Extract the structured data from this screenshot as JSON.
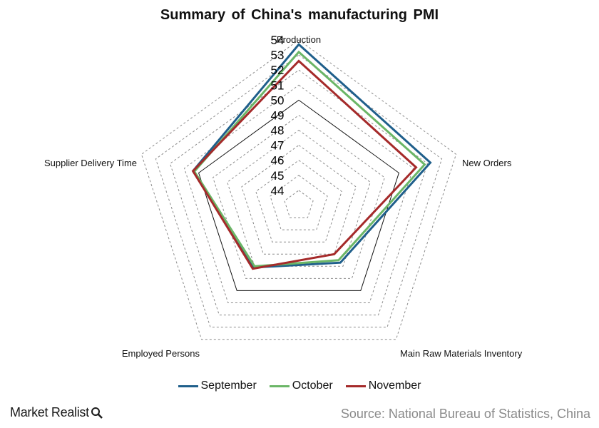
{
  "chart_data": {
    "type": "radar",
    "title": "Summary of China's manufacturing PMI",
    "axes": [
      "Production",
      "New Orders",
      "Main Raw Materials Inventory",
      "Employed Persons",
      "Supplier Delivery Time"
    ],
    "ticks": [
      44,
      45,
      46,
      47,
      48,
      49,
      50,
      51,
      52,
      53,
      54
    ],
    "range": [
      43,
      54
    ],
    "grid": "dashed",
    "reference_level": 50,
    "series": [
      {
        "name": "September",
        "color": "#1f5f8b",
        "values": [
          53.7,
          52.2,
          47.7,
          48.1,
          50.4
        ]
      },
      {
        "name": "October",
        "color": "#6bb667",
        "values": [
          53.2,
          51.8,
          47.5,
          48.0,
          50.3
        ]
      },
      {
        "name": "November",
        "color": "#a52a2a",
        "values": [
          52.6,
          51.2,
          47.0,
          48.2,
          50.4
        ]
      }
    ],
    "legend_position": "bottom"
  },
  "footer": {
    "brand": "Market Realist",
    "brand_icon": "magnifier-icon",
    "source": "Source: National Bureau of Statistics, China"
  }
}
